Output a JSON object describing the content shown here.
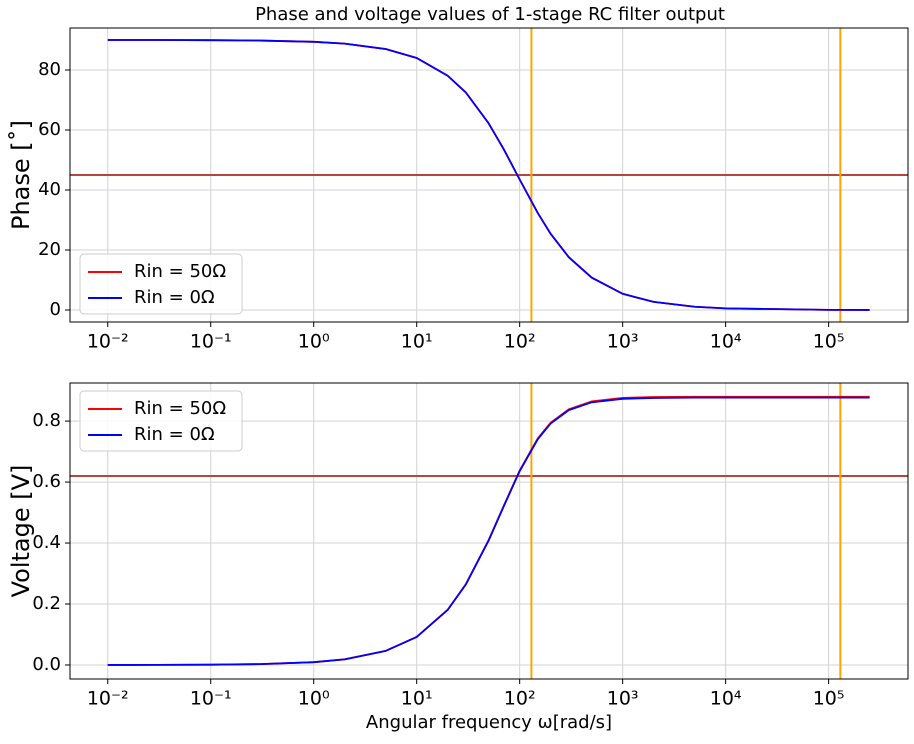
{
  "chart_data": [
    {
      "type": "line",
      "title": "Phase and voltage values of 1-stage RC filter output",
      "ylabel": "Phase [˚]",
      "xscale": "log",
      "grid": true,
      "legend": "lower left",
      "x": [
        0.01,
        0.03,
        0.1,
        0.3,
        1,
        2,
        5,
        10,
        20,
        30,
        50,
        70,
        100,
        150,
        200,
        300,
        500,
        1000,
        2000,
        5000,
        10000,
        100000,
        250000
      ],
      "series": [
        {
          "name": "Rin = 50Ω",
          "color": "#ff0000",
          "values": [
            90.0,
            90.0,
            89.94,
            89.82,
            89.4,
            88.79,
            86.99,
            84.0,
            78.1,
            72.5,
            62.2,
            53.6,
            43.5,
            32.3,
            25.4,
            17.6,
            10.8,
            5.4,
            2.7,
            1.09,
            0.54,
            0.05,
            0.02
          ]
        },
        {
          "name": "Rin = 0Ω",
          "color": "#0000ff",
          "values": [
            90.0,
            90.0,
            89.94,
            89.82,
            89.4,
            88.79,
            86.99,
            84.0,
            78.1,
            72.5,
            62.2,
            53.6,
            43.5,
            32.3,
            25.4,
            17.6,
            10.8,
            5.4,
            2.7,
            1.09,
            0.54,
            0.05,
            0.02
          ]
        }
      ],
      "hlines": [
        {
          "y": 45,
          "color": "#b5463e"
        }
      ],
      "vlines": [
        {
          "x": 130,
          "color": "#ffa500"
        },
        {
          "x": 130000,
          "color": "#ffa500"
        }
      ],
      "xlim": [
        0.0043,
        590000
      ],
      "xticks": [
        {
          "value": 0.01,
          "label": "10⁻²"
        },
        {
          "value": 0.1,
          "label": "10⁻¹"
        },
        {
          "value": 1,
          "label": "10⁰"
        },
        {
          "value": 10,
          "label": "10¹"
        },
        {
          "value": 100,
          "label": "10²"
        },
        {
          "value": 1000,
          "label": "10³"
        },
        {
          "value": 10000,
          "label": "10⁴"
        },
        {
          "value": 100000,
          "label": "10⁵"
        }
      ],
      "ylim": [
        -4,
        94
      ],
      "yticks": [
        0,
        20,
        40,
        60,
        80
      ]
    },
    {
      "type": "line",
      "ylabel": "Voltage [V]",
      "xlabel": "Angular frequency ω[rad/s]",
      "xscale": "log",
      "grid": true,
      "legend": "upper left",
      "x": [
        0.01,
        0.03,
        0.1,
        0.3,
        1,
        2,
        5,
        10,
        20,
        30,
        50,
        70,
        100,
        150,
        200,
        300,
        500,
        1000,
        2000,
        5000,
        10000,
        100000,
        250000
      ],
      "series": [
        {
          "name": "Rin = 50Ω",
          "color": "#ff0000",
          "values": [
            0.0001,
            0.0003,
            0.0009,
            0.0028,
            0.0092,
            0.0186,
            0.0463,
            0.0921,
            0.1813,
            0.265,
            0.4099,
            0.522,
            0.638,
            0.7434,
            0.7949,
            0.8389,
            0.8645,
            0.8761,
            0.879,
            0.8799,
            0.88,
            0.88,
            0.88
          ]
        },
        {
          "name": "Rin = 0Ω",
          "color": "#0000ff",
          "values": [
            0.0001,
            0.0003,
            0.0009,
            0.0028,
            0.0092,
            0.0185,
            0.0461,
            0.0918,
            0.1807,
            0.2641,
            0.4085,
            0.5202,
            0.6358,
            0.7409,
            0.7922,
            0.8361,
            0.8616,
            0.8731,
            0.876,
            0.8769,
            0.877,
            0.877,
            0.877
          ]
        }
      ],
      "hlines": [
        {
          "y": 0.62,
          "color": "#b5463e"
        }
      ],
      "vlines": [
        {
          "x": 130,
          "color": "#ffa500"
        },
        {
          "x": 130000,
          "color": "#ffa500"
        }
      ],
      "xlim": [
        0.0043,
        590000
      ],
      "xticks": [
        {
          "value": 0.01,
          "label": "10⁻²"
        },
        {
          "value": 0.1,
          "label": "10⁻¹"
        },
        {
          "value": 1,
          "label": "10⁰"
        },
        {
          "value": 10,
          "label": "10¹"
        },
        {
          "value": 100,
          "label": "10²"
        },
        {
          "value": 1000,
          "label": "10³"
        },
        {
          "value": 10000,
          "label": "10⁴"
        },
        {
          "value": 100000,
          "label": "10⁵"
        }
      ],
      "ylim": [
        -0.046,
        0.925
      ],
      "yticks": [
        {
          "value": 0,
          "label": "0.0"
        },
        0.2,
        0.4,
        0.6,
        0.8
      ]
    }
  ]
}
